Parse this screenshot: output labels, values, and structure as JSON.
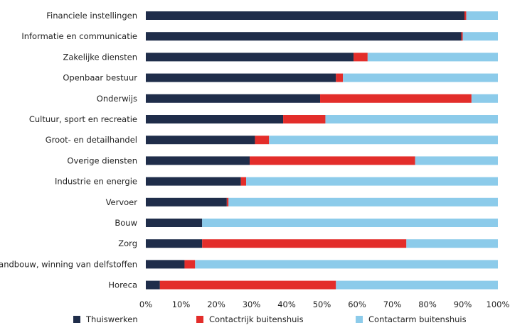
{
  "chart_data": {
    "type": "bar",
    "orientation": "horizontal",
    "stacked": true,
    "categories": [
      "Financiele instellingen",
      "Informatie en communicatie",
      "Zakelijke diensten",
      "Openbaar bestuur",
      "Onderwijs",
      "Cultuur, sport en recreatie",
      "Groot- en detailhandel",
      "Overige diensten",
      "Industrie en energie",
      "Vervoer",
      "Bouw",
      "Zorg",
      "Landbouw, winning van delfstoffen",
      "Horeca"
    ],
    "series": [
      {
        "name": "Thuiswerken",
        "color": "#1f2d4a",
        "values": [
          90.5,
          89.6,
          59,
          54,
          49.5,
          39,
          31,
          29.5,
          27,
          23,
          16,
          16,
          11,
          4
        ]
      },
      {
        "name": "Contactrijk buitenshuis",
        "color": "#e32d2a",
        "values": [
          0.5,
          0.4,
          4,
          2,
          43,
          12,
          4,
          47,
          1.5,
          0.5,
          0,
          58,
          3,
          50
        ]
      },
      {
        "name": "Contactarm buitenshuis",
        "color": "#8ccbea",
        "values": [
          9,
          10,
          37,
          44,
          7.5,
          49,
          65,
          23.5,
          71.5,
          76.5,
          84,
          26,
          86,
          46
        ]
      }
    ],
    "xlim": [
      0,
      100
    ],
    "xticks": [
      "0%",
      "10%",
      "20%",
      "30%",
      "40%",
      "50%",
      "60%",
      "70%",
      "80%",
      "90%",
      "100%"
    ],
    "grid": false,
    "legend_position": "bottom"
  }
}
